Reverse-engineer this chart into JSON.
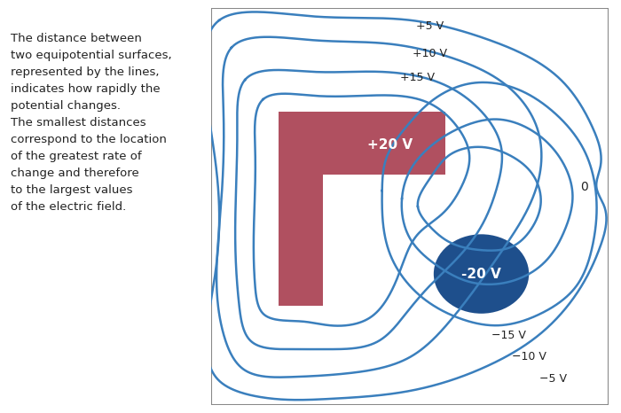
{
  "background_color": "#daeaf5",
  "panel_bg": "#daeaf5",
  "line_color": "#3a7fbd",
  "line_width": 1.8,
  "positive_conductor_color": "#b05060",
  "negative_conductor_color": "#1e4f8c",
  "text_color_white": "#ffffff",
  "text_color_dark": "#222222",
  "annotation_text_left": "The distance between\ntwo equipotential surfaces,\nrepresented by the lines,\nindicates how rapidly the\npotential changes.\nThe smallest distances\ncorrespond to the location\nof the greatest rate of\nchange and therefore\nto the largest values\nof the electric field.",
  "labels": [
    "+5 V",
    "+10 V",
    "+15 V",
    "0",
    "-15 V",
    "-10 V",
    "-5 V"
  ],
  "label_20": "+20 V",
  "label_neg20": "-20 V",
  "figsize": [
    7.0,
    4.66
  ],
  "dpi": 100
}
